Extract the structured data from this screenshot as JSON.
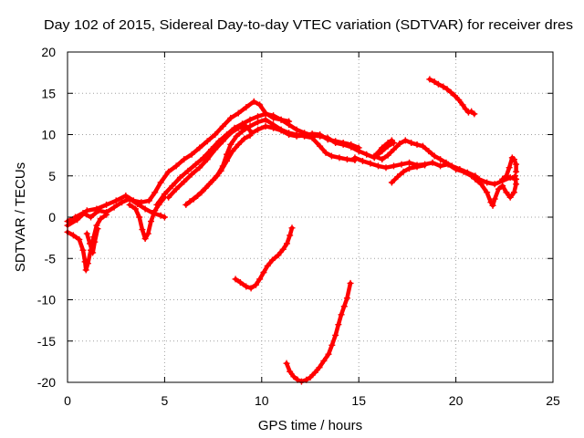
{
  "chart_data": {
    "type": "scatter",
    "title": "Day 102 of 2015, Sidereal Day-to-day VTEC variation (SDTVAR) for receiver dres",
    "xlabel": "GPS time / hours",
    "ylabel": "SDTVAR / TECUs",
    "xlim": [
      0,
      25
    ],
    "ylim": [
      -20,
      20
    ],
    "xticks": [
      0,
      5,
      10,
      15,
      20,
      25
    ],
    "yticks": [
      -20,
      -15,
      -10,
      -5,
      0,
      5,
      10,
      15,
      20
    ],
    "grid": true,
    "marker_color": "#ff0000",
    "grid_color": "#a0a0a0",
    "series": [
      {
        "points": [
          [
            0,
            -1.8
          ],
          [
            0.3,
            -2.2
          ],
          [
            0.6,
            -2.7
          ],
          [
            0.8,
            -4.0
          ],
          [
            0.9,
            -5.4
          ],
          [
            0.95,
            -6.4
          ],
          [
            1.05,
            -5.6
          ],
          [
            1.2,
            -4.0
          ],
          [
            1.35,
            -2.4
          ],
          [
            1.5,
            -1.0
          ],
          [
            1.7,
            -0.2
          ],
          [
            2.0,
            0.3
          ]
        ]
      },
      {
        "points": [
          [
            1.0,
            -2.0
          ],
          [
            1.15,
            -3.2
          ],
          [
            1.3,
            -4.3
          ],
          [
            1.4,
            -3.0
          ],
          [
            1.55,
            -1.4
          ]
        ]
      },
      {
        "points": [
          [
            0,
            -0.5
          ],
          [
            0.4,
            0.0
          ],
          [
            0.8,
            0.5
          ],
          [
            1.2,
            0.0
          ],
          [
            1.6,
            0.8
          ],
          [
            2.0,
            0.6
          ],
          [
            2.4,
            1.2
          ],
          [
            2.8,
            1.8
          ],
          [
            3.2,
            2.2
          ],
          [
            3.6,
            1.6
          ],
          [
            4.0,
            1.0
          ],
          [
            4.4,
            0.5
          ],
          [
            4.8,
            0.2
          ],
          [
            5.0,
            0.0
          ]
        ]
      },
      {
        "points": [
          [
            3.2,
            1.5
          ],
          [
            3.5,
            1.0
          ],
          [
            3.7,
            0.0
          ],
          [
            3.85,
            -1.5
          ],
          [
            4.0,
            -2.6
          ],
          [
            4.15,
            -2.0
          ],
          [
            4.3,
            -0.5
          ],
          [
            4.5,
            0.8
          ],
          [
            4.7,
            1.5
          ],
          [
            5.0,
            2.4
          ]
        ]
      },
      {
        "points": [
          [
            0,
            -1.0
          ],
          [
            0.5,
            -0.3
          ],
          [
            1.0,
            0.8
          ],
          [
            1.5,
            1.0
          ],
          [
            2.0,
            1.5
          ],
          [
            2.5,
            2.0
          ],
          [
            3.0,
            2.6
          ],
          [
            3.4,
            2.0
          ],
          [
            3.8,
            1.8
          ],
          [
            4.2,
            2.0
          ],
          [
            4.5,
            3.0
          ],
          [
            4.8,
            4.2
          ],
          [
            5.2,
            5.5
          ],
          [
            5.6,
            6.2
          ],
          [
            6.0,
            7.0
          ],
          [
            6.4,
            7.6
          ],
          [
            6.8,
            8.4
          ],
          [
            7.2,
            9.2
          ],
          [
            7.6,
            10.0
          ],
          [
            8.0,
            11.0
          ],
          [
            8.4,
            12.0
          ],
          [
            8.8,
            12.6
          ],
          [
            9.2,
            13.3
          ],
          [
            9.6,
            14.0
          ],
          [
            9.9,
            13.6
          ],
          [
            10.2,
            12.6
          ],
          [
            10.6,
            12.0
          ],
          [
            11.0,
            11.8
          ],
          [
            11.4,
            11.6
          ]
        ]
      },
      {
        "points": [
          [
            4.6,
            1.5
          ],
          [
            5.0,
            2.8
          ],
          [
            5.4,
            3.8
          ],
          [
            5.8,
            4.8
          ],
          [
            6.2,
            5.6
          ],
          [
            6.6,
            6.4
          ],
          [
            7.0,
            7.2
          ],
          [
            7.4,
            8.2
          ],
          [
            7.8,
            9.2
          ],
          [
            8.2,
            10.0
          ],
          [
            8.6,
            10.8
          ],
          [
            9.0,
            11.3
          ],
          [
            9.4,
            11.8
          ],
          [
            9.8,
            12.2
          ],
          [
            10.2,
            12.5
          ],
          [
            10.6,
            12.3
          ],
          [
            11.0,
            11.8
          ],
          [
            11.4,
            11.2
          ],
          [
            11.8,
            10.6
          ],
          [
            12.2,
            10.2
          ],
          [
            12.6,
            9.9
          ],
          [
            13.0,
            9.8
          ],
          [
            13.4,
            9.6
          ],
          [
            13.8,
            9.0
          ],
          [
            14.2,
            8.8
          ],
          [
            14.6,
            8.5
          ],
          [
            15.0,
            8.0
          ],
          [
            15.4,
            7.6
          ],
          [
            15.8,
            7.2
          ],
          [
            16.2,
            8.0
          ],
          [
            16.5,
            8.6
          ],
          [
            16.8,
            9.0
          ]
        ]
      },
      {
        "points": [
          [
            6.1,
            1.5
          ],
          [
            6.5,
            2.2
          ],
          [
            6.9,
            3.0
          ],
          [
            7.3,
            4.0
          ],
          [
            7.7,
            5.0
          ],
          [
            8.0,
            6.2
          ],
          [
            8.2,
            7.6
          ],
          [
            8.4,
            8.8
          ],
          [
            8.7,
            9.8
          ],
          [
            9.0,
            10.4
          ],
          [
            9.4,
            11.0
          ],
          [
            9.8,
            11.5
          ],
          [
            10.2,
            11.8
          ],
          [
            10.6,
            11.2
          ],
          [
            11.0,
            10.6
          ],
          [
            11.4,
            10.2
          ],
          [
            11.8,
            10.0
          ],
          [
            12.2,
            9.8
          ],
          [
            12.6,
            9.6
          ],
          [
            13.0,
            8.6
          ],
          [
            13.3,
            7.8
          ],
          [
            13.6,
            7.4
          ],
          [
            14.0,
            7.2
          ],
          [
            14.4,
            7.0
          ],
          [
            14.8,
            6.9
          ]
        ]
      },
      {
        "points": [
          [
            5.2,
            2.4
          ],
          [
            5.6,
            3.4
          ],
          [
            6.0,
            4.3
          ],
          [
            6.4,
            5.2
          ],
          [
            6.8,
            6.0
          ],
          [
            7.2,
            7.0
          ],
          [
            7.6,
            8.2
          ],
          [
            8.0,
            9.2
          ],
          [
            8.4,
            10.2
          ],
          [
            8.8,
            10.8
          ],
          [
            9.2,
            11.0
          ],
          [
            9.5,
            10.2
          ],
          [
            9.8,
            10.6
          ],
          [
            10.2,
            11.0
          ],
          [
            10.6,
            10.8
          ],
          [
            11.0,
            10.5
          ],
          [
            11.4,
            10.0
          ],
          [
            11.8,
            9.8
          ],
          [
            12.2,
            9.9
          ],
          [
            12.6,
            10.1
          ],
          [
            13.0,
            10.0
          ],
          [
            13.4,
            9.4
          ],
          [
            13.8,
            9.2
          ],
          [
            14.2,
            9.0
          ],
          [
            14.6,
            8.8
          ],
          [
            15.0,
            8.4
          ]
        ]
      },
      {
        "points": [
          [
            6.3,
            1.9
          ],
          [
            6.7,
            2.6
          ],
          [
            7.1,
            3.5
          ],
          [
            7.5,
            4.5
          ],
          [
            7.9,
            5.6
          ],
          [
            8.2,
            6.8
          ],
          [
            8.5,
            8.0
          ],
          [
            8.8,
            8.8
          ],
          [
            9.1,
            9.5
          ],
          [
            9.4,
            9.9
          ]
        ]
      },
      {
        "points": [
          [
            14.8,
            7.2
          ],
          [
            15.2,
            6.8
          ],
          [
            15.6,
            6.5
          ],
          [
            16.0,
            6.2
          ],
          [
            16.4,
            6.0
          ],
          [
            16.8,
            6.2
          ],
          [
            17.2,
            6.4
          ],
          [
            17.6,
            6.6
          ],
          [
            18.0,
            6.3
          ],
          [
            18.4,
            6.4
          ],
          [
            18.8,
            6.6
          ],
          [
            19.2,
            6.2
          ],
          [
            19.6,
            6.4
          ],
          [
            20.0,
            5.8
          ],
          [
            20.4,
            5.5
          ],
          [
            20.8,
            5.0
          ],
          [
            21.2,
            4.6
          ],
          [
            21.6,
            4.2
          ],
          [
            22.0,
            4.0
          ],
          [
            22.4,
            4.4
          ],
          [
            22.8,
            4.8
          ],
          [
            23.1,
            4.6
          ]
        ]
      },
      {
        "points": [
          [
            15.8,
            7.4
          ],
          [
            16.2,
            7.0
          ],
          [
            16.5,
            7.5
          ],
          [
            16.8,
            8.2
          ],
          [
            17.1,
            8.9
          ],
          [
            17.4,
            9.3
          ],
          [
            17.7,
            9.0
          ],
          [
            18.0,
            8.8
          ],
          [
            18.3,
            8.6
          ],
          [
            18.6,
            8.0
          ],
          [
            18.9,
            7.4
          ],
          [
            19.2,
            7.0
          ],
          [
            19.5,
            6.6
          ],
          [
            19.8,
            6.2
          ],
          [
            20.2,
            5.8
          ],
          [
            20.6,
            5.4
          ],
          [
            21.0,
            5.0
          ]
        ]
      },
      {
        "points": [
          [
            16.7,
            4.2
          ],
          [
            17.0,
            4.9
          ],
          [
            17.3,
            5.5
          ],
          [
            17.6,
            5.9
          ],
          [
            18.0,
            6.1
          ],
          [
            18.4,
            6.3
          ]
        ]
      },
      {
        "points": [
          [
            15.9,
            7.6
          ],
          [
            16.2,
            8.4
          ],
          [
            16.5,
            9.0
          ],
          [
            16.7,
            9.3
          ]
        ]
      },
      {
        "points": [
          [
            21.0,
            4.6
          ],
          [
            21.3,
            4.0
          ],
          [
            21.6,
            3.0
          ],
          [
            21.8,
            1.8
          ],
          [
            21.9,
            1.4
          ],
          [
            22.0,
            2.2
          ],
          [
            22.2,
            3.4
          ],
          [
            22.4,
            3.8
          ],
          [
            22.6,
            3.0
          ],
          [
            22.8,
            2.4
          ],
          [
            23.0,
            3.0
          ],
          [
            23.1,
            4.0
          ],
          [
            23.05,
            5.0
          ]
        ]
      },
      {
        "points": [
          [
            22.4,
            4.6
          ],
          [
            22.6,
            5.0
          ],
          [
            22.75,
            6.0
          ],
          [
            22.9,
            7.2
          ],
          [
            23.0,
            7.0
          ],
          [
            23.1,
            6.4
          ],
          [
            23.1,
            5.5
          ]
        ]
      },
      {
        "points": [
          [
            18.65,
            16.7
          ],
          [
            18.9,
            16.4
          ],
          [
            19.1,
            16.1
          ],
          [
            19.35,
            15.8
          ],
          [
            19.55,
            15.5
          ],
          [
            19.75,
            15.1
          ],
          [
            19.95,
            14.7
          ],
          [
            20.15,
            14.2
          ],
          [
            20.35,
            13.6
          ],
          [
            20.5,
            13.1
          ],
          [
            20.65,
            12.7
          ],
          [
            20.8,
            12.8
          ],
          [
            20.95,
            12.5
          ]
        ]
      },
      {
        "points": [
          [
            8.65,
            -7.5
          ],
          [
            8.9,
            -7.9
          ],
          [
            9.2,
            -8.4
          ],
          [
            9.45,
            -8.6
          ],
          [
            9.7,
            -8.2
          ],
          [
            9.9,
            -7.5
          ],
          [
            10.1,
            -6.7
          ],
          [
            10.3,
            -5.9
          ],
          [
            10.55,
            -5.2
          ],
          [
            10.85,
            -4.6
          ],
          [
            11.1,
            -3.9
          ],
          [
            11.3,
            -3.2
          ],
          [
            11.45,
            -2.2
          ],
          [
            11.56,
            -1.3
          ]
        ]
      },
      {
        "points": [
          [
            11.28,
            -17.7
          ],
          [
            11.45,
            -18.7
          ],
          [
            11.65,
            -19.3
          ],
          [
            11.85,
            -19.7
          ],
          [
            12.05,
            -19.9
          ],
          [
            12.3,
            -19.7
          ],
          [
            12.5,
            -19.4
          ],
          [
            12.75,
            -18.8
          ],
          [
            12.97,
            -18.2
          ],
          [
            13.2,
            -17.4
          ],
          [
            13.44,
            -16.6
          ],
          [
            13.62,
            -15.5
          ],
          [
            13.8,
            -14.3
          ],
          [
            13.95,
            -13.0
          ],
          [
            14.1,
            -11.8
          ],
          [
            14.25,
            -10.8
          ],
          [
            14.4,
            -9.8
          ],
          [
            14.57,
            -8.0
          ]
        ]
      }
    ]
  }
}
